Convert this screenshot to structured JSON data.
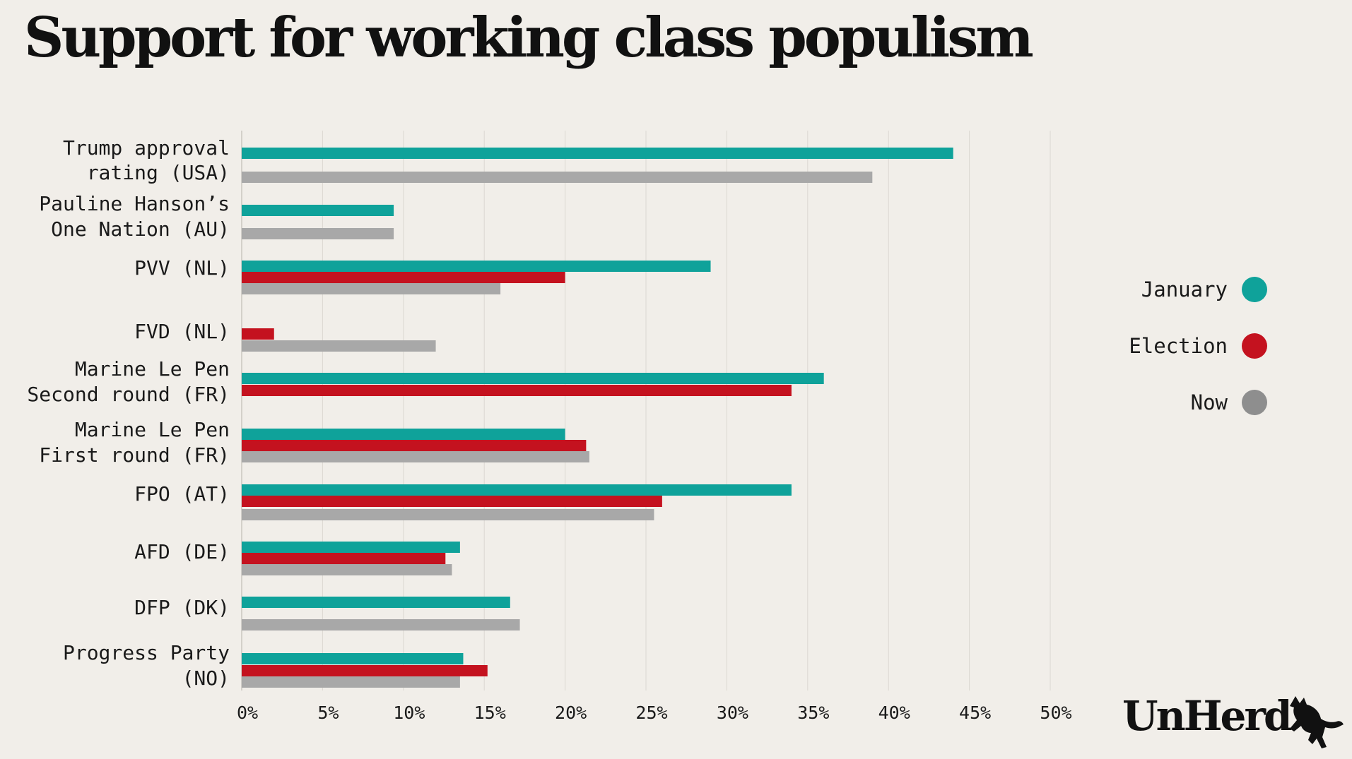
{
  "title": "Support for working class populism",
  "logo": {
    "text": "UnHerd"
  },
  "colors": {
    "january": "#0fa29a",
    "election": "#c4121f",
    "now": "#a8a8a8",
    "grid": "#dcd8d2",
    "background": "#f1eee9"
  },
  "chart_data": {
    "type": "bar",
    "orientation": "horizontal",
    "title": "Support for working class populism",
    "xlim": [
      0,
      50
    ],
    "x_ticks": [
      "0%",
      "5%",
      "10%",
      "15%",
      "20%",
      "25%",
      "30%",
      "35%",
      "40%",
      "45%",
      "50%"
    ],
    "grid": true,
    "legend_position": "right",
    "categories": [
      [
        "Trump approval",
        "rating (USA)"
      ],
      [
        "Pauline Hanson’s",
        "One Nation (AU)"
      ],
      [
        "PVV (NL)"
      ],
      [
        "FVD (NL)"
      ],
      [
        "Marine Le Pen",
        "Second round (FR)"
      ],
      [
        "Marine Le Pen",
        "First round (FR)"
      ],
      [
        "FPO (AT)"
      ],
      [
        "AFD (DE)"
      ],
      [
        "DFP (DK)"
      ],
      [
        "Progress Party",
        "(NO)"
      ]
    ],
    "series": [
      {
        "name": "January",
        "color": "#0fa29a",
        "values": [
          44,
          9.4,
          29,
          null,
          36,
          20,
          34,
          13.5,
          16.6,
          13.7
        ]
      },
      {
        "name": "Election",
        "color": "#c4121f",
        "values": [
          null,
          null,
          20,
          2,
          34,
          21.3,
          26,
          12.6,
          null,
          15.2
        ]
      },
      {
        "name": "Now",
        "color": "#a8a8a8",
        "values": [
          39,
          9.4,
          16,
          12,
          null,
          21.5,
          25.5,
          13,
          17.2,
          13.5
        ]
      }
    ]
  }
}
